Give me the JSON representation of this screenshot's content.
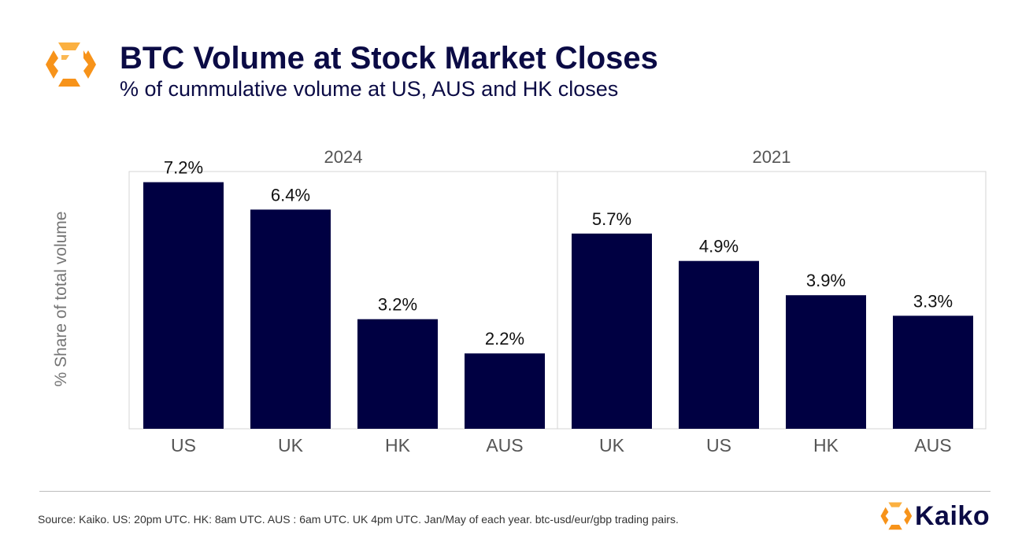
{
  "header": {
    "title": "BTC Volume at Stock Market Closes",
    "subtitle": "% of cummulative volume at US, AUS and HK closes"
  },
  "colors": {
    "bar": "#000042",
    "title": "#0b0b45",
    "logo_orange": "#f7931a",
    "logo_orange_light": "#fbb040"
  },
  "icons": {
    "header_logo": "kaiko-logo-icon",
    "footer_logo": "kaiko-logo-icon"
  },
  "chart_data": {
    "type": "bar",
    "ylabel": "% Share of total volume",
    "ylim": [
      0,
      8
    ],
    "grid": false,
    "panels": [
      {
        "title": "2024",
        "categories": [
          "US",
          "UK",
          "HK",
          "AUS"
        ],
        "values": [
          7.2,
          6.4,
          3.2,
          2.2
        ],
        "labels": [
          "7.2%",
          "6.4%",
          "3.2%",
          "2.2%"
        ]
      },
      {
        "title": "2021",
        "categories": [
          "UK",
          "US",
          "HK",
          "AUS"
        ],
        "values": [
          5.7,
          4.9,
          3.9,
          3.3
        ],
        "labels": [
          "5.7%",
          "4.9%",
          "3.9%",
          "3.3%"
        ]
      }
    ]
  },
  "footer": {
    "source": "Source: Kaiko. US: 20pm UTC. HK: 8am UTC. AUS : 6am UTC. UK 4pm UTC. Jan/May of each year. btc-usd/eur/gbp trading pairs.",
    "brand": "Kaiko"
  }
}
